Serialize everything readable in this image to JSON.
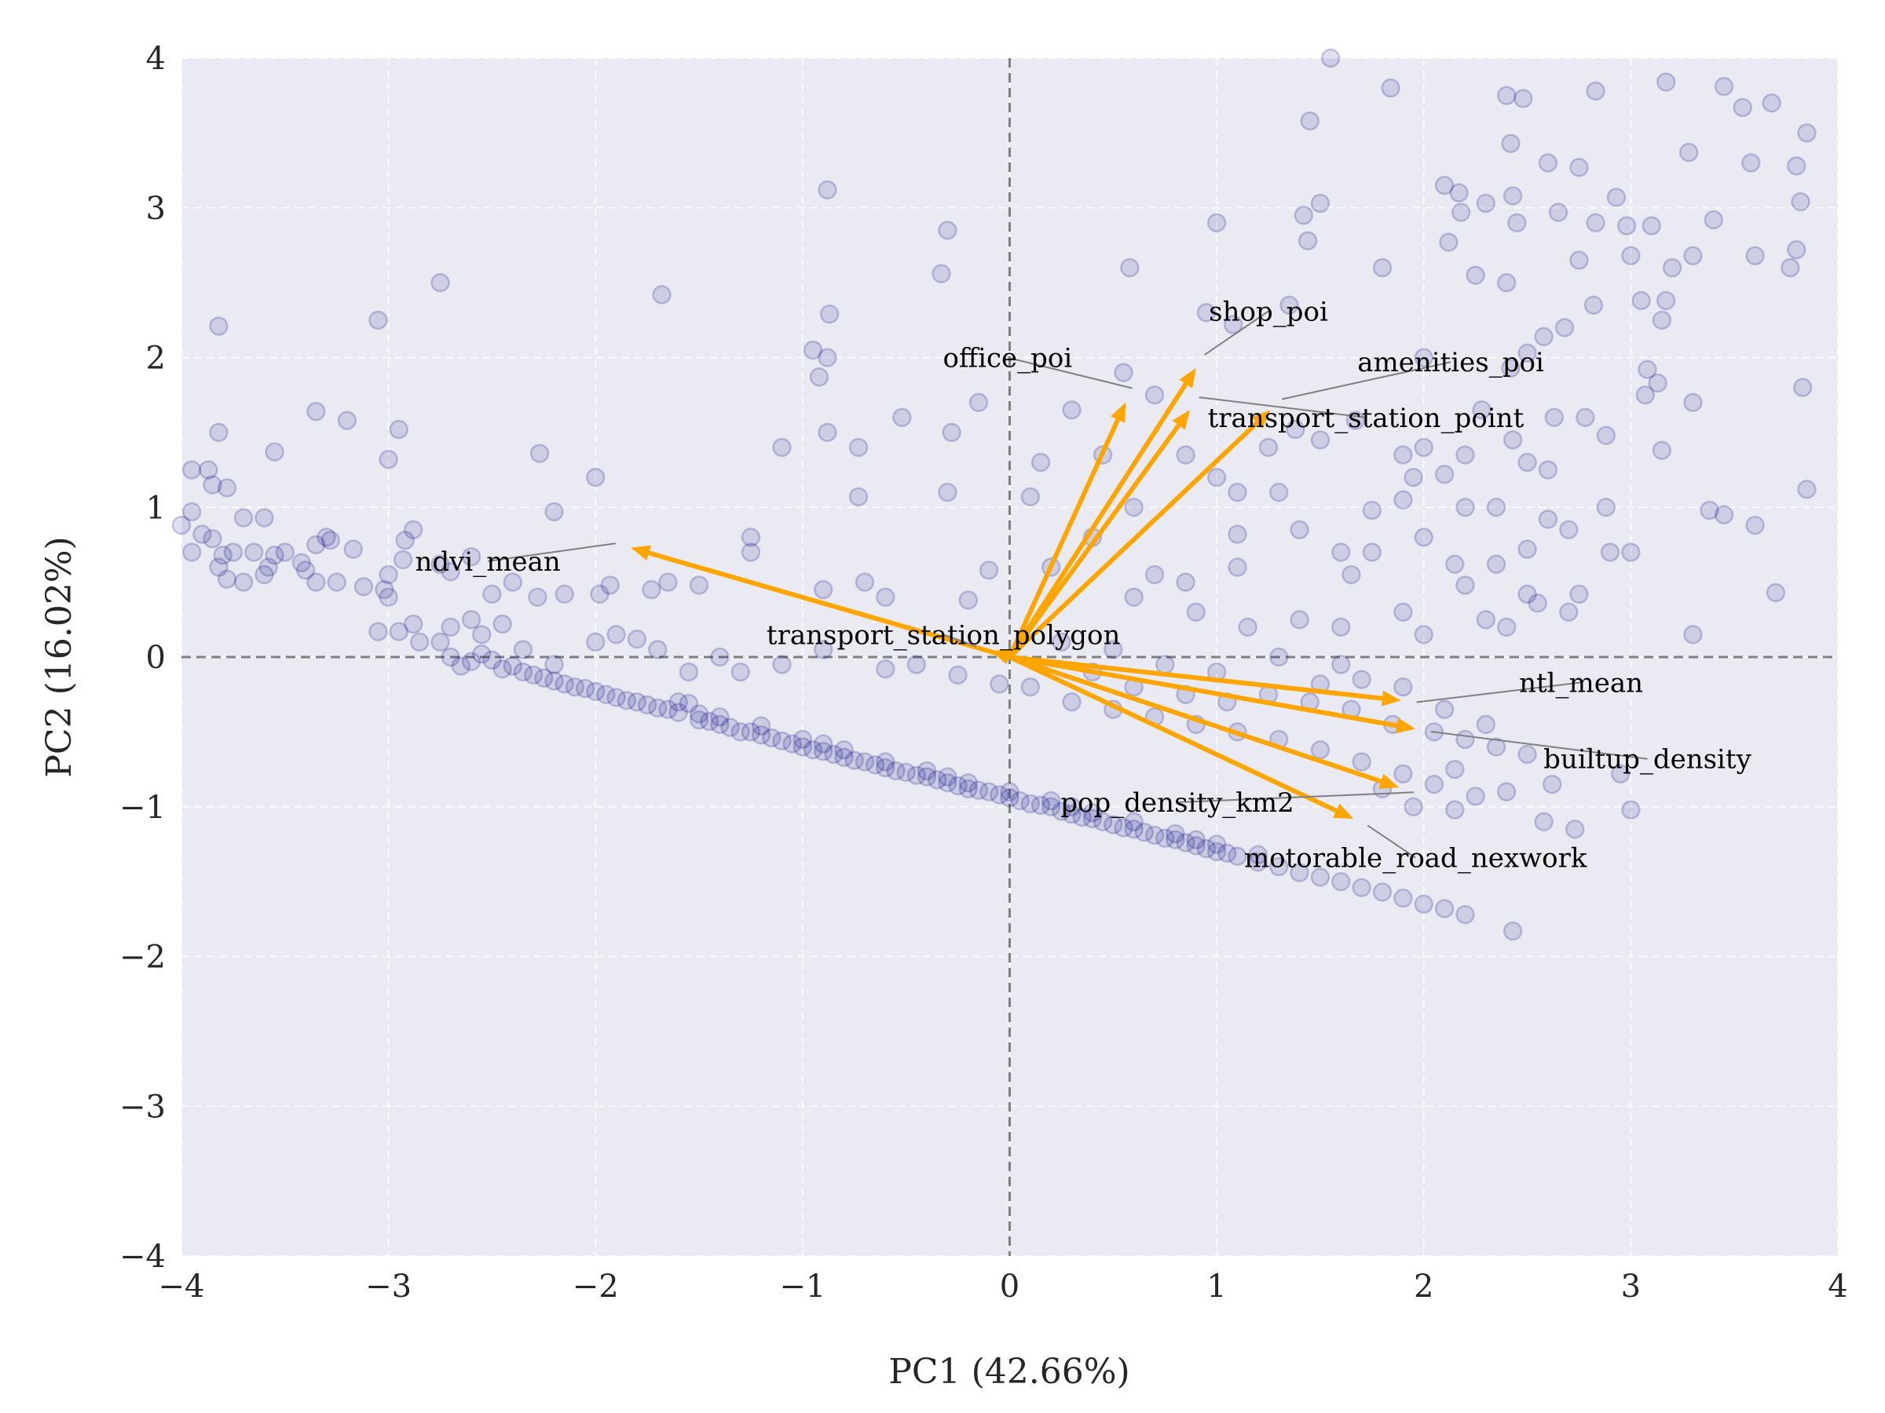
{
  "chart_data": {
    "type": "scatter",
    "subtype": "pca-biplot",
    "title": "",
    "xlabel": "PC1 (42.66%)",
    "ylabel": "PC2 (16.02%)",
    "xlim": [
      -4,
      4
    ],
    "ylim": [
      -4,
      4
    ],
    "xticks": [
      -4,
      -3,
      -2,
      -1,
      0,
      1,
      2,
      3,
      4
    ],
    "yticks": [
      -4,
      -3,
      -2,
      -1,
      0,
      1,
      2,
      3,
      4
    ],
    "xtick_labels": [
      "−4",
      "−3",
      "−2",
      "−1",
      "0",
      "1",
      "2",
      "3",
      "4"
    ],
    "ytick_labels": [
      "−4",
      "−3",
      "−2",
      "−1",
      "0",
      "1",
      "2",
      "3",
      "4"
    ],
    "grid": true,
    "reference_lines": {
      "x": 0,
      "y": 0,
      "style": "dashed"
    },
    "colors": {
      "background": "#eaeaf2",
      "points": "#000080",
      "arrows": "#ffa500",
      "grid": "#ffffff",
      "reference": "#808080"
    },
    "points": [
      [
        -2.7,
        0.0
      ],
      [
        -2.65,
        -0.06
      ],
      [
        -2.6,
        -0.03
      ],
      [
        -2.55,
        0.02
      ],
      [
        -2.5,
        -0.02
      ],
      [
        -2.45,
        -0.08
      ],
      [
        -2.4,
        -0.06
      ],
      [
        -2.35,
        -0.1
      ],
      [
        -2.3,
        -0.12
      ],
      [
        -2.25,
        -0.14
      ],
      [
        -2.2,
        -0.16
      ],
      [
        -2.15,
        -0.18
      ],
      [
        -2.1,
        -0.2
      ],
      [
        -2.05,
        -0.21
      ],
      [
        -2.0,
        -0.23
      ],
      [
        -1.95,
        -0.25
      ],
      [
        -1.9,
        -0.27
      ],
      [
        -1.85,
        -0.29
      ],
      [
        -1.8,
        -0.3
      ],
      [
        -1.75,
        -0.32
      ],
      [
        -1.7,
        -0.34
      ],
      [
        -1.65,
        -0.35
      ],
      [
        -1.6,
        -0.37
      ],
      [
        -1.55,
        -0.31
      ],
      [
        -1.5,
        -0.42
      ],
      [
        -1.45,
        -0.43
      ],
      [
        -1.4,
        -0.45
      ],
      [
        -1.35,
        -0.47
      ],
      [
        -1.3,
        -0.5
      ],
      [
        -1.25,
        -0.5
      ],
      [
        -1.2,
        -0.52
      ],
      [
        -1.15,
        -0.54
      ],
      [
        -1.1,
        -0.56
      ],
      [
        -1.05,
        -0.58
      ],
      [
        -1.0,
        -0.6
      ],
      [
        -0.95,
        -0.62
      ],
      [
        -0.9,
        -0.63
      ],
      [
        -0.85,
        -0.65
      ],
      [
        -0.8,
        -0.67
      ],
      [
        -0.75,
        -0.69
      ],
      [
        -0.7,
        -0.7
      ],
      [
        -0.65,
        -0.72
      ],
      [
        -0.6,
        -0.74
      ],
      [
        -0.55,
        -0.76
      ],
      [
        -0.5,
        -0.77
      ],
      [
        -0.45,
        -0.79
      ],
      [
        -0.4,
        -0.8
      ],
      [
        -0.35,
        -0.82
      ],
      [
        -0.3,
        -0.84
      ],
      [
        -0.25,
        -0.86
      ],
      [
        -0.2,
        -0.88
      ],
      [
        -0.15,
        -0.89
      ],
      [
        -0.1,
        -0.9
      ],
      [
        -0.05,
        -0.92
      ],
      [
        0.0,
        -0.94
      ],
      [
        0.05,
        -0.96
      ],
      [
        0.1,
        -0.98
      ],
      [
        0.15,
        -0.99
      ],
      [
        0.2,
        -1.0
      ],
      [
        0.25,
        -1.03
      ],
      [
        0.3,
        -1.05
      ],
      [
        0.35,
        -1.07
      ],
      [
        0.4,
        -1.08
      ],
      [
        0.45,
        -1.1
      ],
      [
        0.5,
        -1.12
      ],
      [
        0.55,
        -1.14
      ],
      [
        0.6,
        -1.15
      ],
      [
        0.65,
        -1.17
      ],
      [
        0.7,
        -1.19
      ],
      [
        0.75,
        -1.21
      ],
      [
        0.8,
        -1.22
      ],
      [
        0.85,
        -1.24
      ],
      [
        0.9,
        -1.26
      ],
      [
        0.95,
        -1.28
      ],
      [
        1.0,
        -1.3
      ],
      [
        1.05,
        -1.31
      ],
      [
        1.1,
        -1.33
      ],
      [
        1.2,
        -1.37
      ],
      [
        1.3,
        -1.4
      ],
      [
        1.4,
        -1.44
      ],
      [
        1.5,
        -1.47
      ],
      [
        1.6,
        -1.5
      ],
      [
        1.7,
        -1.54
      ],
      [
        1.8,
        -1.57
      ],
      [
        1.9,
        -1.61
      ],
      [
        2.0,
        -1.65
      ],
      [
        2.1,
        -1.68
      ],
      [
        2.2,
        -1.72
      ],
      [
        -1.6,
        -0.3
      ],
      [
        -1.4,
        -0.4
      ],
      [
        -1.2,
        -0.46
      ],
      [
        -1.0,
        -0.55
      ],
      [
        -0.8,
        -0.62
      ],
      [
        -0.6,
        -0.7
      ],
      [
        -0.4,
        -0.76
      ],
      [
        -0.2,
        -0.84
      ],
      [
        0.0,
        -0.9
      ],
      [
        0.2,
        -0.96
      ],
      [
        0.4,
        -1.04
      ],
      [
        0.6,
        -1.1
      ],
      [
        0.8,
        -1.18
      ],
      [
        1.0,
        -1.25
      ],
      [
        1.2,
        -1.32
      ],
      [
        -1.5,
        -0.38
      ],
      [
        -0.9,
        -0.58
      ],
      [
        -0.3,
        -0.8
      ],
      [
        0.3,
        -1.0
      ],
      [
        0.9,
        -1.22
      ],
      [
        1.55,
        4.0
      ],
      [
        1.84,
        3.8
      ],
      [
        2.83,
        3.78
      ],
      [
        2.4,
        3.75
      ],
      [
        2.48,
        3.73
      ],
      [
        3.17,
        3.84
      ],
      [
        3.45,
        3.81
      ],
      [
        3.68,
        3.7
      ],
      [
        3.85,
        3.5
      ],
      [
        3.54,
        3.67
      ],
      [
        1.5,
        3.03
      ],
      [
        1.45,
        3.58
      ],
      [
        2.42,
        3.43
      ],
      [
        2.1,
        3.15
      ],
      [
        2.17,
        3.1
      ],
      [
        2.43,
        3.08
      ],
      [
        2.3,
        3.03
      ],
      [
        2.45,
        2.9
      ],
      [
        2.18,
        2.97
      ],
      [
        2.6,
        3.3
      ],
      [
        2.75,
        3.27
      ],
      [
        2.93,
        3.07
      ],
      [
        3.28,
        3.37
      ],
      [
        3.58,
        3.3
      ],
      [
        3.8,
        3.28
      ],
      [
        3.82,
        3.04
      ],
      [
        3.4,
        2.92
      ],
      [
        3.1,
        2.88
      ],
      [
        2.98,
        2.88
      ],
      [
        2.83,
        2.9
      ],
      [
        2.65,
        2.97
      ],
      [
        2.12,
        2.77
      ],
      [
        1.42,
        2.95
      ],
      [
        1.44,
        2.78
      ],
      [
        1.0,
        2.9
      ],
      [
        3.8,
        2.72
      ],
      [
        3.3,
        2.68
      ],
      [
        3.0,
        2.68
      ],
      [
        2.75,
        2.65
      ],
      [
        2.25,
        2.55
      ],
      [
        3.2,
        2.6
      ],
      [
        3.6,
        2.68
      ],
      [
        3.77,
        2.6
      ],
      [
        2.4,
        2.5
      ],
      [
        1.8,
        2.6
      ],
      [
        2.82,
        2.35
      ],
      [
        2.58,
        2.14
      ],
      [
        3.05,
        2.38
      ],
      [
        3.17,
        2.38
      ],
      [
        3.15,
        2.25
      ],
      [
        1.08,
        2.22
      ],
      [
        0.95,
        2.3
      ],
      [
        0.58,
        2.6
      ],
      [
        1.35,
        2.35
      ],
      [
        2.68,
        2.2
      ],
      [
        2.5,
        2.03
      ],
      [
        2.42,
        1.93
      ],
      [
        2.0,
        2.0
      ],
      [
        3.08,
        1.92
      ],
      [
        3.13,
        1.83
      ],
      [
        3.3,
        1.7
      ],
      [
        3.07,
        1.75
      ],
      [
        3.83,
        1.8
      ],
      [
        2.78,
        1.6
      ],
      [
        2.88,
        1.48
      ],
      [
        2.28,
        1.65
      ],
      [
        2.63,
        1.6
      ],
      [
        2.43,
        1.45
      ],
      [
        1.67,
        1.58
      ],
      [
        1.5,
        1.45
      ],
      [
        1.38,
        1.52
      ],
      [
        1.25,
        1.4
      ],
      [
        2.0,
        1.4
      ],
      [
        1.9,
        1.35
      ],
      [
        2.2,
        1.35
      ],
      [
        2.5,
        1.3
      ],
      [
        2.6,
        1.25
      ],
      [
        2.1,
        1.22
      ],
      [
        1.95,
        1.2
      ],
      [
        1.3,
        1.1
      ],
      [
        1.1,
        1.1
      ],
      [
        1.9,
        1.05
      ],
      [
        2.2,
        1.0
      ],
      [
        2.35,
        1.0
      ],
      [
        2.6,
        0.92
      ],
      [
        2.7,
        0.85
      ],
      [
        1.75,
        0.98
      ],
      [
        1.4,
        0.85
      ],
      [
        1.1,
        0.82
      ],
      [
        2.0,
        0.8
      ],
      [
        2.5,
        0.72
      ],
      [
        2.9,
        0.7
      ],
      [
        1.6,
        0.7
      ],
      [
        1.75,
        0.7
      ],
      [
        2.35,
        0.62
      ],
      [
        2.15,
        0.62
      ],
      [
        1.1,
        0.6
      ],
      [
        1.65,
        0.55
      ],
      [
        2.2,
        0.48
      ],
      [
        2.5,
        0.42
      ],
      [
        2.75,
        0.42
      ],
      [
        3.0,
        0.7
      ],
      [
        2.55,
        0.36
      ],
      [
        1.9,
        0.3
      ],
      [
        1.4,
        0.25
      ],
      [
        0.9,
        0.3
      ],
      [
        0.6,
        0.4
      ],
      [
        1.15,
        0.2
      ],
      [
        1.6,
        0.2
      ],
      [
        2.0,
        0.15
      ],
      [
        2.4,
        0.2
      ],
      [
        2.3,
        0.25
      ],
      [
        2.7,
        0.3
      ],
      [
        3.3,
        0.15
      ],
      [
        3.85,
        1.12
      ],
      [
        3.6,
        0.88
      ],
      [
        3.45,
        0.95
      ],
      [
        3.7,
        0.43
      ],
      [
        3.38,
        0.98
      ],
      [
        2.88,
        1.0
      ],
      [
        3.15,
        1.38
      ],
      [
        0.55,
        1.9
      ],
      [
        0.7,
        1.75
      ],
      [
        0.45,
        1.35
      ],
      [
        0.3,
        1.65
      ],
      [
        0.15,
        1.3
      ],
      [
        0.1,
        1.07
      ],
      [
        0.85,
        1.35
      ],
      [
        1.0,
        1.2
      ],
      [
        0.6,
        1.0
      ],
      [
        0.4,
        0.8
      ],
      [
        0.2,
        0.6
      ],
      [
        0.7,
        0.55
      ],
      [
        0.85,
        0.5
      ],
      [
        -0.3,
        2.85
      ],
      [
        -0.33,
        2.56
      ],
      [
        -0.88,
        3.12
      ],
      [
        -0.87,
        2.29
      ],
      [
        -0.88,
        2.0
      ],
      [
        -0.95,
        2.05
      ],
      [
        -0.92,
        1.87
      ],
      [
        -0.15,
        1.7
      ],
      [
        -0.28,
        1.5
      ],
      [
        -0.52,
        1.6
      ],
      [
        -0.88,
        1.5
      ],
      [
        -0.73,
        1.4
      ],
      [
        -1.1,
        1.4
      ],
      [
        -0.3,
        1.1
      ],
      [
        -0.73,
        1.07
      ],
      [
        -1.68,
        2.42
      ],
      [
        -2.75,
        2.5
      ],
      [
        -3.05,
        2.25
      ],
      [
        -3.82,
        2.21
      ],
      [
        -2.95,
        1.52
      ],
      [
        -3.0,
        1.32
      ],
      [
        -3.35,
        1.64
      ],
      [
        -3.2,
        1.58
      ],
      [
        -3.82,
        1.5
      ],
      [
        -3.55,
        1.37
      ],
      [
        -2.27,
        1.36
      ],
      [
        -2.0,
        1.2
      ],
      [
        -2.2,
        0.97
      ],
      [
        -1.25,
        0.8
      ],
      [
        -1.25,
        0.7
      ],
      [
        -0.9,
        0.45
      ],
      [
        -0.7,
        0.5
      ],
      [
        -0.6,
        0.4
      ],
      [
        -0.1,
        0.58
      ],
      [
        -0.2,
        0.38
      ],
      [
        -3.95,
        1.25
      ],
      [
        -3.87,
        1.25
      ],
      [
        -3.85,
        1.15
      ],
      [
        -3.78,
        1.13
      ],
      [
        -3.95,
        0.97
      ],
      [
        -3.7,
        0.93
      ],
      [
        -3.6,
        0.93
      ],
      [
        -3.9,
        0.82
      ],
      [
        -3.85,
        0.79
      ],
      [
        -3.8,
        0.68
      ],
      [
        -4.0,
        0.88
      ],
      [
        -3.95,
        0.7
      ],
      [
        -3.75,
        0.7
      ],
      [
        -3.65,
        0.7
      ],
      [
        -3.55,
        0.68
      ],
      [
        -3.58,
        0.6
      ],
      [
        -3.5,
        0.7
      ],
      [
        -3.42,
        0.63
      ],
      [
        -3.35,
        0.75
      ],
      [
        -3.3,
        0.8
      ],
      [
        -3.28,
        0.78
      ],
      [
        -3.4,
        0.58
      ],
      [
        -3.35,
        0.5
      ],
      [
        -3.25,
        0.5
      ],
      [
        -3.17,
        0.72
      ],
      [
        -3.82,
        0.6
      ],
      [
        -3.78,
        0.52
      ],
      [
        -3.7,
        0.5
      ],
      [
        -3.6,
        0.55
      ],
      [
        -3.12,
        0.47
      ],
      [
        -3.0,
        0.55
      ],
      [
        -3.02,
        0.45
      ],
      [
        -2.93,
        0.65
      ],
      [
        -2.92,
        0.78
      ],
      [
        -2.88,
        0.85
      ],
      [
        -2.75,
        0.62
      ],
      [
        -2.7,
        0.57
      ],
      [
        -2.6,
        0.67
      ],
      [
        -2.5,
        0.42
      ],
      [
        -2.4,
        0.5
      ],
      [
        -2.28,
        0.4
      ],
      [
        -2.15,
        0.42
      ],
      [
        -1.98,
        0.42
      ],
      [
        -1.93,
        0.48
      ],
      [
        -1.73,
        0.45
      ],
      [
        -1.65,
        0.5
      ],
      [
        -1.5,
        0.48
      ],
      [
        -2.88,
        0.22
      ],
      [
        -2.95,
        0.17
      ],
      [
        -3.05,
        0.17
      ],
      [
        -3.0,
        0.4
      ],
      [
        -2.85,
        0.1
      ],
      [
        -2.75,
        0.1
      ],
      [
        -2.7,
        0.2
      ],
      [
        -2.6,
        0.25
      ],
      [
        -2.55,
        0.15
      ],
      [
        -2.45,
        0.22
      ],
      [
        -2.35,
        0.05
      ],
      [
        -2.2,
        -0.05
      ],
      [
        -2.0,
        0.1
      ],
      [
        -1.9,
        0.15
      ],
      [
        -1.8,
        0.12
      ],
      [
        -1.7,
        0.05
      ],
      [
        -1.55,
        -0.1
      ],
      [
        -1.4,
        0.0
      ],
      [
        -1.3,
        -0.1
      ],
      [
        -1.1,
        -0.05
      ],
      [
        -0.9,
        0.05
      ],
      [
        -0.6,
        -0.08
      ],
      [
        -0.45,
        -0.05
      ],
      [
        -0.25,
        -0.12
      ],
      [
        -0.05,
        -0.18
      ],
      [
        0.25,
        0.1
      ],
      [
        0.5,
        0.05
      ],
      [
        0.75,
        -0.05
      ],
      [
        1.0,
        -0.1
      ],
      [
        1.3,
        0.0
      ],
      [
        1.6,
        -0.05
      ],
      [
        0.1,
        -0.2
      ],
      [
        0.3,
        -0.3
      ],
      [
        0.5,
        -0.35
      ],
      [
        0.7,
        -0.4
      ],
      [
        0.9,
        -0.45
      ],
      [
        1.1,
        -0.5
      ],
      [
        1.3,
        -0.55
      ],
      [
        1.5,
        -0.62
      ],
      [
        1.7,
        -0.7
      ],
      [
        1.9,
        -0.78
      ],
      [
        2.05,
        -0.85
      ],
      [
        2.25,
        -0.93
      ],
      [
        0.6,
        -0.2
      ],
      [
        0.85,
        -0.25
      ],
      [
        1.05,
        -0.3
      ],
      [
        1.25,
        -0.25
      ],
      [
        1.45,
        -0.3
      ],
      [
        1.65,
        -0.35
      ],
      [
        1.85,
        -0.45
      ],
      [
        2.05,
        -0.5
      ],
      [
        2.2,
        -0.55
      ],
      [
        2.35,
        -0.6
      ],
      [
        2.5,
        -0.65
      ],
      [
        2.62,
        -0.85
      ],
      [
        2.58,
        -1.1
      ],
      [
        2.73,
        -1.15
      ],
      [
        2.4,
        -0.9
      ],
      [
        2.15,
        -0.75
      ],
      [
        3.0,
        -1.02
      ],
      [
        2.95,
        -0.78
      ],
      [
        2.43,
        -1.83
      ],
      [
        1.5,
        -0.18
      ],
      [
        1.7,
        -0.15
      ],
      [
        1.9,
        -0.2
      ],
      [
        2.1,
        -0.35
      ],
      [
        2.3,
        -0.45
      ],
      [
        0.4,
        -0.1
      ],
      [
        1.8,
        -0.88
      ],
      [
        1.95,
        -1.0
      ],
      [
        2.15,
        -1.02
      ]
    ],
    "loadings": [
      {
        "name": "ndvi_mean",
        "x": -1.83,
        "y": 0.73,
        "label_x": -2.52,
        "label_y": 0.64
      },
      {
        "name": "office_poi",
        "x": 0.56,
        "y": 1.7,
        "label_x": -0.01,
        "label_y": 2.0
      },
      {
        "name": "shop_poi",
        "x": 0.9,
        "y": 1.93,
        "label_x": 1.25,
        "label_y": 2.31
      },
      {
        "name": "amenities_poi",
        "x": 1.26,
        "y": 1.65,
        "label_x": 2.13,
        "label_y": 1.97
      },
      {
        "name": "transport_station_point",
        "x": 0.87,
        "y": 1.65,
        "label_x": 1.72,
        "label_y": 1.6
      },
      {
        "name": "transport_station_polygon",
        "x": -0.09,
        "y": 0.04,
        "label_x": -0.32,
        "label_y": 0.15
      },
      {
        "name": "ntl_mean",
        "x": 1.89,
        "y": -0.29,
        "label_x": 2.76,
        "label_y": -0.17
      },
      {
        "name": "builtup_density",
        "x": 1.96,
        "y": -0.48,
        "label_x": 3.08,
        "label_y": -0.68
      },
      {
        "name": "pop_density_km2",
        "x": 1.88,
        "y": -0.87,
        "label_x": 0.81,
        "label_y": -0.97
      },
      {
        "name": "motorable_road_nexwork",
        "x": 1.66,
        "y": -1.08,
        "label_x": 1.96,
        "label_y": -1.34
      }
    ]
  }
}
